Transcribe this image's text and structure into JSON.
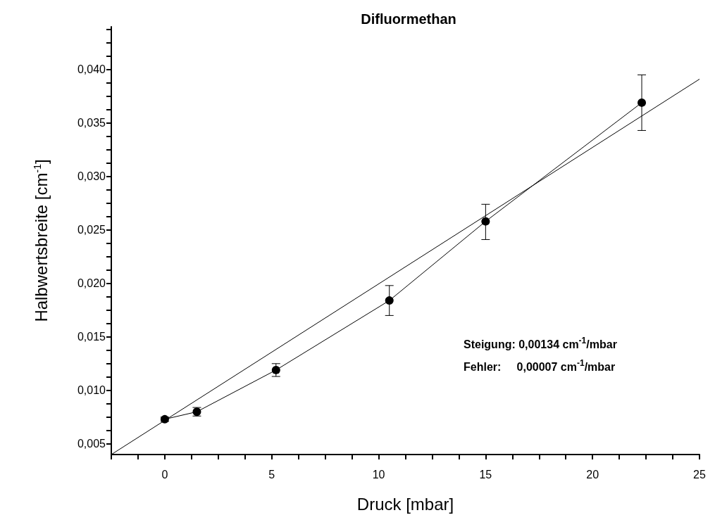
{
  "chart_data": {
    "type": "line",
    "title": "Difluormethan",
    "xlabel": "Druck [mbar]",
    "ylabel": "Halbwertsbreite [cm$^{-1}$]",
    "xlim": [
      -2.5,
      25
    ],
    "xticks": [
      0,
      5,
      10,
      15,
      20,
      25
    ],
    "ylim": [
      0.004,
      0.044
    ],
    "yticks": [
      {
        "value": 0.005,
        "label": "0,005"
      },
      {
        "value": 0.01,
        "label": "0,010"
      },
      {
        "value": 0.015,
        "label": "0,015"
      },
      {
        "value": 0.02,
        "label": "0,020"
      },
      {
        "value": 0.025,
        "label": "0,025"
      },
      {
        "value": 0.03,
        "label": "0,030"
      },
      {
        "value": 0.035,
        "label": "0,035"
      },
      {
        "value": 0.04,
        "label": "0,040"
      }
    ],
    "series": [
      {
        "color": "#000000",
        "marker": "circle",
        "x": [
          0,
          1.5,
          5.2,
          10.5,
          15,
          22.3
        ],
        "values": [
          0.0073,
          0.008,
          0.0119,
          0.0184,
          0.0258,
          0.0369
        ],
        "errors": [
          0.0002,
          0.0004,
          0.0006,
          [
            0.017,
            0.0198
          ],
          [
            0.0241,
            0.0274
          ],
          [
            0.0343,
            0.0395
          ]
        ]
      },
      {
        "color": "#000000",
        "marker": "none",
        "x": [
          -2.5,
          25
        ],
        "values": [
          0.004,
          0.0391
        ]
      }
    ],
    "annotations": [
      "Steigung: 0,00134 cm$^{-1}$/mbar",
      "Fehler:     0,00007 cm$^{-1}$/mbar"
    ]
  }
}
